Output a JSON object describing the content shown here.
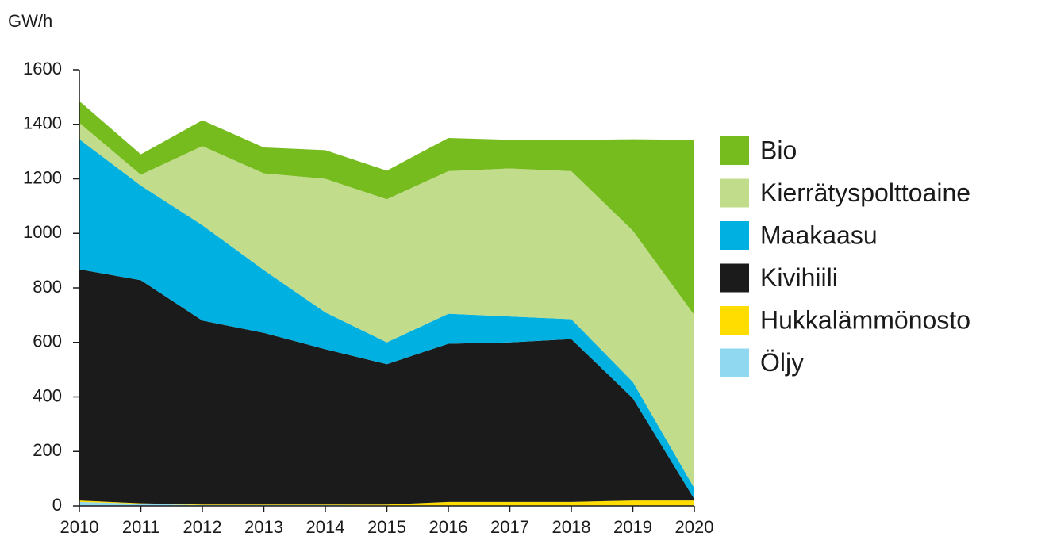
{
  "chart_data": {
    "type": "stacked_area",
    "y_label": "GW/h",
    "x": [
      2010,
      2011,
      2012,
      2013,
      2014,
      2015,
      2016,
      2017,
      2018,
      2019,
      2020
    ],
    "xlim": [
      2010,
      2020
    ],
    "xticks": [
      2010,
      2011,
      2012,
      2013,
      2014,
      2015,
      2016,
      2017,
      2018,
      2019,
      2020
    ],
    "ylim": [
      0,
      1600
    ],
    "yticks": [
      0,
      200,
      400,
      600,
      800,
      1000,
      1200,
      1400,
      1600
    ],
    "legend": "right",
    "series": [
      {
        "name": "Bio",
        "color": "#77bc1f",
        "values": [
          80,
          75,
          95,
          95,
          105,
          105,
          122,
          105,
          115,
          335,
          643
        ]
      },
      {
        "name": "Kierrätyspolttoaine",
        "color": "#c1dc8a",
        "values": [
          60,
          40,
          290,
          355,
          490,
          525,
          523,
          543,
          543,
          555,
          635
        ]
      },
      {
        "name": "Maakaasu",
        "color": "#00b0e0",
        "values": [
          477,
          347,
          350,
          230,
          135,
          80,
          110,
          95,
          73,
          60,
          40
        ]
      },
      {
        "name": "Kivihiili",
        "color": "#1b1b1b",
        "values": [
          848,
          818,
          675,
          630,
          570,
          515,
          580,
          585,
          597,
          375,
          5
        ]
      },
      {
        "name": "Hukkalämmönosto",
        "color": "#ffdd00",
        "values": [
          5,
          2,
          2,
          2,
          2,
          3,
          13,
          13,
          13,
          18,
          18
        ]
      },
      {
        "name": "Öljy",
        "color": "#8fd8ef",
        "values": [
          15,
          8,
          3,
          3,
          3,
          2,
          2,
          2,
          2,
          2,
          2
        ]
      }
    ]
  }
}
